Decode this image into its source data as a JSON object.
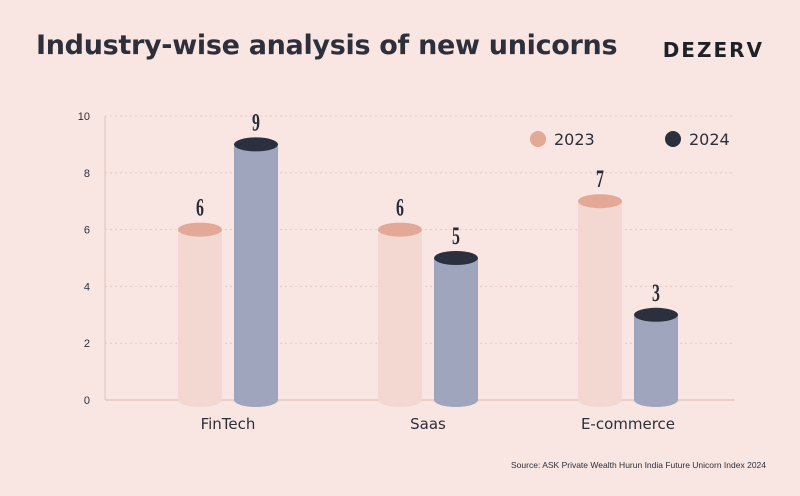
{
  "title": "Industry-wise analysis of new unicorns",
  "brand": "DEZERV",
  "source": "Source: ASK Private Wealth Hurun India Future Unicorn Index 2024",
  "colors": {
    "background": "#f9e6e2",
    "series_2023": "#f2d8d0",
    "series_2023_marker": "#e3a896",
    "series_2024": "#9ea5bd",
    "series_2024_marker": "#2c2f3e",
    "text": "#2d2f3b"
  },
  "chart_data": {
    "type": "bar",
    "categories": [
      "FinTech",
      "Saas",
      "E-commerce"
    ],
    "series": [
      {
        "name": "2023",
        "values": [
          6,
          6,
          7
        ]
      },
      {
        "name": "2024",
        "values": [
          9,
          5,
          3
        ]
      }
    ],
    "ylim": [
      0,
      10
    ],
    "yticks": [
      0,
      2,
      4,
      6,
      8,
      10
    ],
    "grid": true,
    "legend": "top-right",
    "xlabel": "",
    "ylabel": ""
  }
}
